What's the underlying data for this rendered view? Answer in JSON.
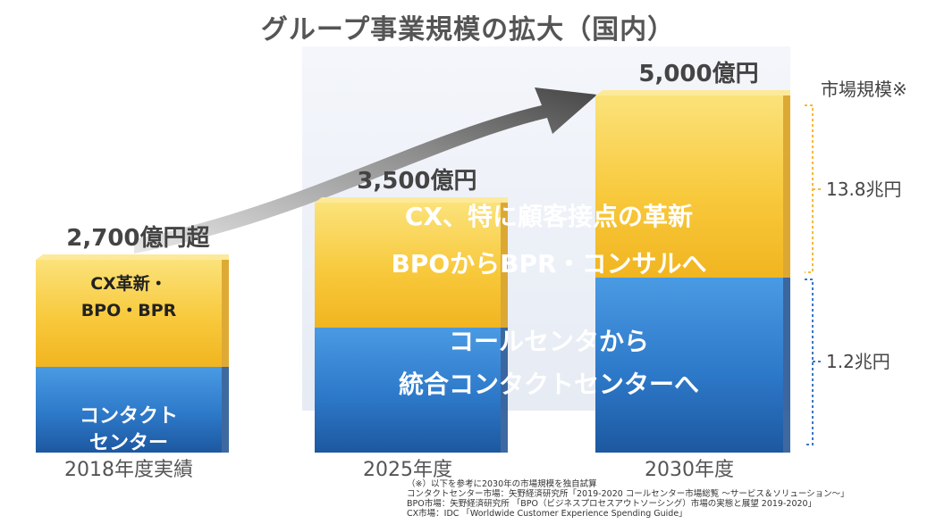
{
  "title": "グループ事業規模の拡大（国内）",
  "chart_data": {
    "type": "bar",
    "stacked": true,
    "title": "グループ事業規模の拡大（国内）",
    "categories": [
      "2018年度実績",
      "2025年度",
      "2030年度"
    ],
    "totals": [
      2700,
      3500,
      5000
    ],
    "total_labels": [
      "2,700億円超",
      "3,500億円",
      "5,000億円"
    ],
    "series": [
      {
        "name": "コンタクトセンター",
        "values": [
          1200,
          1750,
          2450
        ],
        "color": "#2f78c8"
      },
      {
        "name": "CX革新・BPO・BPR",
        "values": [
          1500,
          1750,
          2550
        ],
        "color": "#f6c33a"
      }
    ],
    "segment_labels": {
      "bar1_top": [
        "CX革新・",
        "BPO・BPR"
      ],
      "bar1_bottom": [
        "コンタクト",
        "センター"
      ]
    },
    "overlay_text": {
      "top": [
        "CX、特に顧客接点の革新",
        "BPOからBPR・コンサルへ"
      ],
      "bottom": [
        "コールセンタから",
        "統合コンタクトセンターへ"
      ]
    },
    "ylim": [
      0,
      5500
    ],
    "market": {
      "title": "市場規模※",
      "top_value": "13.8兆円",
      "bottom_value": "1.2兆円",
      "top_color": "#f5b93a",
      "bottom_color": "#3b77c4"
    }
  },
  "notes": [
    "（※）以下を参考に2030年の市場規模を独自試算",
    "コンタクトセンター市場：矢野経済研究所「2019-2020 コールセンター市場総覧 ～サービス＆ソリューション～」",
    "BPO市場：矢野経済研究所 「BPO（ビジネスプロセスアウトソーシング）市場の実態と展望 2019-2020」",
    "CX市場：IDC 「Worldwide Customer Experience Spending Guide」"
  ]
}
